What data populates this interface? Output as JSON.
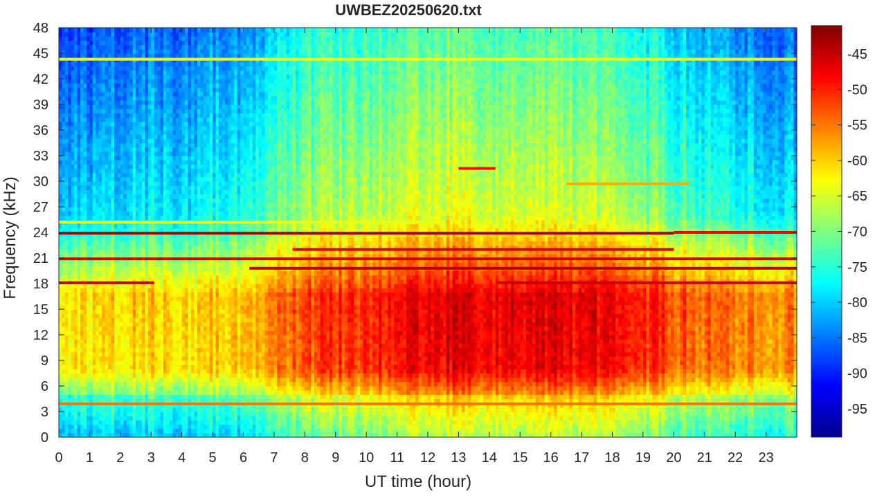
{
  "chart_data": {
    "type": "heatmap",
    "title": "UWBEZ20250620.txt",
    "xlabel": "UT time (hour)",
    "ylabel": "Frequency (kHz)",
    "xlim": [
      0,
      24
    ],
    "ylim": [
      0,
      48
    ],
    "xticks": [
      "0",
      "1",
      "2",
      "3",
      "4",
      "5",
      "6",
      "7",
      "8",
      "9",
      "10",
      "11",
      "12",
      "13",
      "14",
      "15",
      "16",
      "17",
      "18",
      "19",
      "20",
      "21",
      "22",
      "23"
    ],
    "yticks": [
      "0",
      "3",
      "6",
      "9",
      "12",
      "15",
      "18",
      "21",
      "24",
      "27",
      "30",
      "33",
      "36",
      "39",
      "42",
      "45",
      "48"
    ],
    "colorbar": {
      "colormap": "jet",
      "range": [
        -99,
        -41
      ],
      "ticks": [
        "-45",
        "-50",
        "-55",
        "-60",
        "-65",
        "-70",
        "-75",
        "-80",
        "-85",
        "-90",
        "-95"
      ]
    },
    "grid": false,
    "background_level_by_hour": [
      {
        "hour": 0,
        "low_band_dB": -62,
        "high_band_dB": -86
      },
      {
        "hour": 6,
        "low_band_dB": -60,
        "high_band_dB": -82
      },
      {
        "hour": 8,
        "low_band_dB": -53,
        "high_band_dB": -74
      },
      {
        "hour": 13,
        "low_band_dB": -47,
        "high_band_dB": -70
      },
      {
        "hour": 18,
        "low_band_dB": -48,
        "high_band_dB": -72
      },
      {
        "hour": 21,
        "low_band_dB": -55,
        "high_band_dB": -80
      },
      {
        "hour": 24,
        "low_band_dB": -56,
        "high_band_dB": -84
      }
    ],
    "transmitter_lines": [
      {
        "freq_khz": 18.1,
        "start_hour": 0,
        "end_hour": 3.1,
        "level_dB": -45
      },
      {
        "freq_khz": 18.1,
        "start_hour": 14.3,
        "end_hour": 24,
        "level_dB": -45
      },
      {
        "freq_khz": 19.8,
        "start_hour": 6.2,
        "end_hour": 24,
        "level_dB": -44
      },
      {
        "freq_khz": 20.9,
        "start_hour": 0,
        "end_hour": 24,
        "level_dB": -46
      },
      {
        "freq_khz": 22.0,
        "start_hour": 7.6,
        "end_hour": 20.0,
        "level_dB": -46
      },
      {
        "freq_khz": 23.9,
        "start_hour": 0,
        "end_hour": 20.0,
        "level_dB": -43
      },
      {
        "freq_khz": 24.0,
        "start_hour": 20.0,
        "end_hour": 24,
        "level_dB": -48
      },
      {
        "freq_khz": 25.2,
        "start_hour": 0,
        "end_hour": 12.5,
        "level_dB": -64
      },
      {
        "freq_khz": 29.7,
        "start_hour": 16.5,
        "end_hour": 20.5,
        "level_dB": -58
      },
      {
        "freq_khz": 31.5,
        "start_hour": 13.0,
        "end_hour": 14.2,
        "level_dB": -49
      },
      {
        "freq_khz": 44.3,
        "start_hour": 0,
        "end_hour": 24,
        "level_dB": -64
      },
      {
        "freq_khz": 3.9,
        "start_hour": 0,
        "end_hour": 24,
        "level_dB": -55
      }
    ]
  }
}
